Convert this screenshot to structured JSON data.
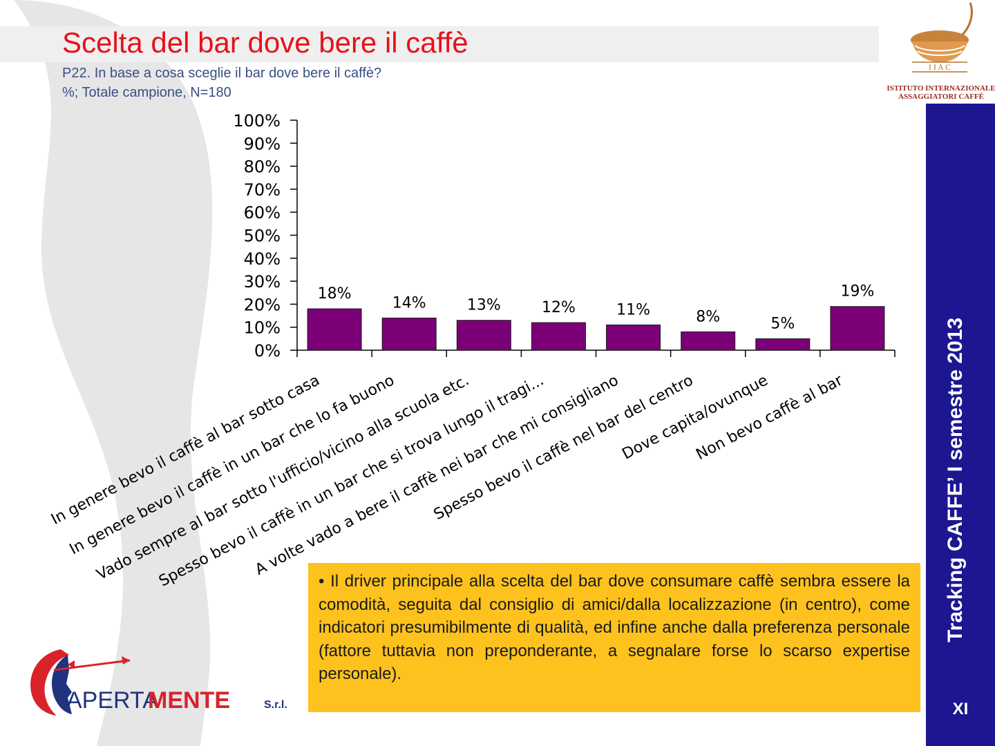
{
  "slide": {
    "title": "Scelta del bar dove bere il caffè",
    "subtitle_line1": "P22.  In base a cosa sceglie il bar dove bere il caffè?",
    "subtitle_line2": "%; Totale campione, N=180",
    "sidebar_text": "Tracking CAFFE’ I semestre 2013",
    "page_number": "XI",
    "note": "• Il driver principale alla scelta del bar dove consumare caffè sembra essere la comodità, seguita dal consiglio di amici/dalla localizzazione (in centro), come indicatori presumibilmente di qualità, ed infine anche dalla preferenza personale (fattore tuttavia non preponderante, a segnalare forse lo scarso expertise personale)."
  },
  "logos": {
    "iiac_letters": "I  I  A  C",
    "iiac_line1": "ISTITUTO INTERNAZIONALE",
    "iiac_line2": "ASSAGGIATORI CAFFÈ",
    "apertamente_part1": "APERTA",
    "apertamente_part2": "MENTE",
    "apertamente_suffix": "S.r.l."
  },
  "colors": {
    "title": "#e8101a",
    "subtitle": "#3a4e86",
    "bar_fill": "#7b0077",
    "sidebar": "#1c1791",
    "note_bg": "#fdc21e"
  },
  "chart_data": {
    "type": "bar",
    "categories": [
      "In genere bevo il caffè al bar sotto casa",
      "In genere bevo il caffè in un bar che lo fa buono",
      "Vado sempre al bar sotto l'ufficio/vicino alla scuola etc.",
      "Spesso bevo il caffè in un bar che si trova lungo il tragi...",
      "A volte vado a bere il caffè nei bar che mi consigliano",
      "Spesso bevo il caffè nel bar del centro",
      "Dove capita/ovunque",
      "Non bevo caffè al bar"
    ],
    "values": [
      18,
      14,
      13,
      12,
      11,
      8,
      5,
      19
    ],
    "data_labels": [
      "18%",
      "14%",
      "13%",
      "12%",
      "11%",
      "8%",
      "5%",
      "19%"
    ],
    "yticks": [
      "0%",
      "10%",
      "20%",
      "30%",
      "40%",
      "50%",
      "60%",
      "70%",
      "80%",
      "90%",
      "100%"
    ],
    "ylim": [
      0,
      100
    ],
    "title": "",
    "xlabel": "",
    "ylabel": "",
    "grid": false,
    "legend": "none"
  }
}
